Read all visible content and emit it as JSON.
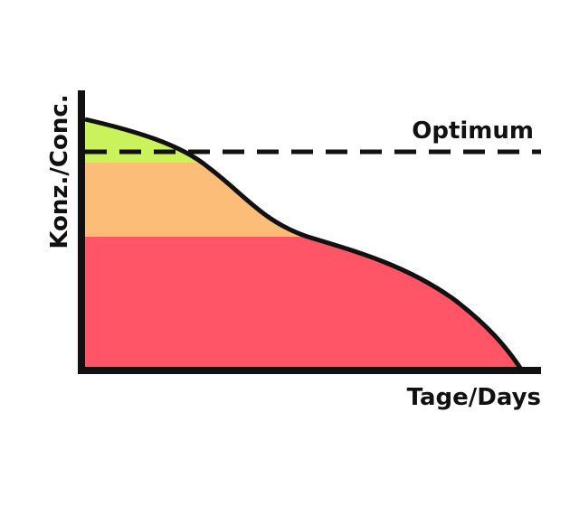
{
  "labels": {
    "optimum": "Optimum",
    "y_axis": "Konz./Conc.",
    "x_axis": "Tage/Days"
  }
}
